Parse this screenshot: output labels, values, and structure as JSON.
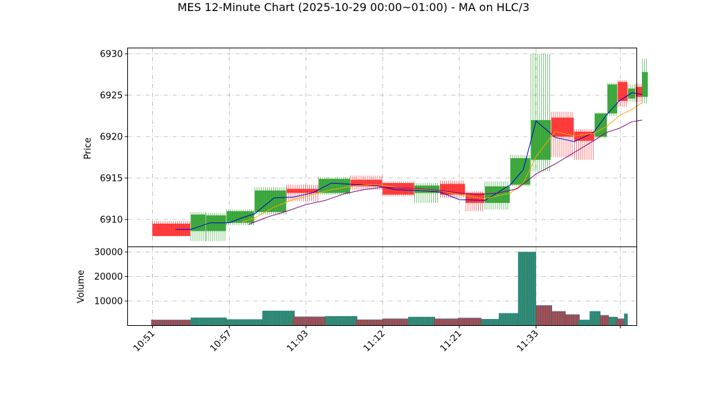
{
  "title": "MES 12-Minute Chart (2025-10-29 00:00~01:00) - MA on HLC/3",
  "colors": {
    "up": "#2ca02c",
    "down": "#ff2a2a",
    "ma_fast": "#0000cc",
    "ma_mid": "#ffa500",
    "ma_slow": "#800080",
    "volume_edge": "#1f77b4"
  },
  "chart_data": [
    {
      "type": "candlestick",
      "ylabel": "Price",
      "xlabel": "",
      "ylim": [
        6906.7,
        6930.7
      ],
      "yticks": [
        6910,
        6915,
        6920,
        6925,
        6930
      ],
      "x_tick_labels": [
        "10:51",
        "10:57",
        "11:03",
        "11:12",
        "11:21",
        "11:33"
      ],
      "x_tick_positions": [
        0,
        6,
        12,
        18,
        24,
        30
      ],
      "grid": true,
      "candles": [
        {
          "x": 0,
          "o": 6909.5,
          "h": 6909.8,
          "l": 6908.0,
          "c": 6908.0,
          "dir": "down"
        },
        {
          "x": 3,
          "o": 6908.6,
          "h": 6910.9,
          "l": 6907.4,
          "c": 6910.6,
          "dir": "up"
        },
        {
          "x": 4.2,
          "o": 6908.6,
          "h": 6910.8,
          "l": 6907.4,
          "c": 6910.5,
          "dir": "up"
        },
        {
          "x": 5.8,
          "o": 6909.6,
          "h": 6911.2,
          "l": 6909.3,
          "c": 6911.0,
          "dir": "up"
        },
        {
          "x": 8,
          "o": 6910.9,
          "h": 6913.9,
          "l": 6910.6,
          "c": 6913.5,
          "dir": "up"
        },
        {
          "x": 10.5,
          "o": 6913.7,
          "h": 6914.2,
          "l": 6912.2,
          "c": 6913.2,
          "dir": "down"
        },
        {
          "x": 13,
          "o": 6913.2,
          "h": 6915.1,
          "l": 6913.0,
          "c": 6914.9,
          "dir": "up"
        },
        {
          "x": 15.5,
          "o": 6914.8,
          "h": 6915.3,
          "l": 6913.6,
          "c": 6914.0,
          "dir": "down"
        },
        {
          "x": 18,
          "o": 6914.4,
          "h": 6914.6,
          "l": 6912.8,
          "c": 6913.0,
          "dir": "down"
        },
        {
          "x": 20.5,
          "o": 6913.2,
          "h": 6914.4,
          "l": 6912.0,
          "c": 6914.1,
          "dir": "up"
        },
        {
          "x": 22.5,
          "o": 6914.3,
          "h": 6914.7,
          "l": 6912.6,
          "c": 6913.0,
          "dir": "down"
        },
        {
          "x": 24.5,
          "o": 6913.2,
          "h": 6913.4,
          "l": 6911.0,
          "c": 6912.0,
          "dir": "down"
        },
        {
          "x": 26,
          "o": 6912.0,
          "h": 6914.6,
          "l": 6911.2,
          "c": 6914.0,
          "dir": "up"
        },
        {
          "x": 28,
          "o": 6914.2,
          "h": 6917.8,
          "l": 6914.0,
          "c": 6917.4,
          "dir": "up"
        },
        {
          "x": 29.6,
          "o": 6917.2,
          "h": 6930.0,
          "l": 6915.8,
          "c": 6922.0,
          "dir": "up"
        },
        {
          "x": 31.2,
          "o": 6922.3,
          "h": 6923.0,
          "l": 6917.5,
          "c": 6920.0,
          "dir": "down"
        },
        {
          "x": 33,
          "o": 6920.6,
          "h": 6920.9,
          "l": 6917.2,
          "c": 6919.5,
          "dir": "down"
        },
        {
          "x": 34.6,
          "o": 6920.0,
          "h": 6922.9,
          "l": 6919.8,
          "c": 6922.8,
          "dir": "up"
        },
        {
          "x": 35.6,
          "o": 6922.8,
          "h": 6926.5,
          "l": 6922.5,
          "c": 6926.3,
          "dir": "up"
        },
        {
          "x": 36.4,
          "o": 6926.6,
          "h": 6926.8,
          "l": 6923.6,
          "c": 6924.3,
          "dir": "down"
        },
        {
          "x": 37.2,
          "o": 6924.6,
          "h": 6926.3,
          "l": 6924.2,
          "c": 6925.8,
          "dir": "up"
        },
        {
          "x": 37.8,
          "o": 6926.0,
          "h": 6926.4,
          "l": 6924.2,
          "c": 6924.8,
          "dir": "down"
        },
        {
          "x": 38.3,
          "o": 6924.8,
          "h": 6929.4,
          "l": 6924.0,
          "c": 6927.8,
          "dir": "up"
        }
      ],
      "series": [
        {
          "key": "ma_fast",
          "x": [
            1.8,
            3,
            4.5,
            6,
            7,
            8,
            9.5,
            11,
            12.5,
            14,
            16,
            17.5,
            19,
            21,
            22.5,
            24,
            26,
            28,
            29,
            30,
            31.5,
            33,
            34.5,
            35.5,
            36.5,
            37.5,
            38.3
          ],
          "y": [
            6908.8,
            6908.8,
            6909.6,
            6909.6,
            6910.2,
            6910.7,
            6912.6,
            6912.7,
            6913.2,
            6914.4,
            6914.2,
            6914.1,
            6913.6,
            6913.5,
            6913.3,
            6912.4,
            6912.3,
            6914.2,
            6916.0,
            6921.9,
            6919.9,
            6919.4,
            6920.5,
            6922.6,
            6924.3,
            6925.3,
            6925.1
          ]
        },
        {
          "key": "ma_mid",
          "x": [
            7,
            8,
            9.5,
            11,
            12.5,
            14,
            16,
            17.5,
            19,
            21,
            22.5,
            24,
            26,
            28,
            29,
            30,
            31.5,
            33,
            34.5,
            35.5,
            36.5,
            37.5,
            38.3
          ],
          "y": [
            6909.7,
            6910.2,
            6911.5,
            6912.4,
            6913.0,
            6913.6,
            6914.1,
            6914.2,
            6913.9,
            6913.6,
            6913.5,
            6913.0,
            6912.5,
            6913.2,
            6914.4,
            6917.6,
            6920.6,
            6920.1,
            6920.4,
            6921.2,
            6922.5,
            6923.3,
            6924.1
          ]
        },
        {
          "key": "ma_slow",
          "x": [
            7.5,
            9,
            10.5,
            12,
            13.5,
            15,
            16.5,
            18,
            19.5,
            21,
            22.5,
            24,
            25.5,
            27,
            28.5,
            30,
            31.5,
            33,
            34.5,
            35.5,
            36.5,
            37.5,
            38.3
          ],
          "y": [
            6909.4,
            6910.3,
            6911.0,
            6911.8,
            6912.3,
            6913.1,
            6913.6,
            6913.9,
            6913.8,
            6913.7,
            6913.5,
            6913.2,
            6913.0,
            6913.2,
            6913.7,
            6915.5,
            6916.7,
            6918.1,
            6919.5,
            6920.5,
            6921.0,
            6921.8,
            6922.0
          ]
        }
      ]
    },
    {
      "type": "bar",
      "ylabel": "Volume",
      "ylim": [
        0,
        30000
      ],
      "yticks": [
        10000,
        20000,
        30000
      ],
      "bars": [
        {
          "x0": -0.1,
          "x1": 3.0,
          "v": 2300,
          "dir": "down"
        },
        {
          "x0": 3.0,
          "x1": 5.8,
          "v": 3200,
          "dir": "up"
        },
        {
          "x0": 5.8,
          "x1": 8.6,
          "v": 2500,
          "dir": "up"
        },
        {
          "x0": 8.6,
          "x1": 11.0,
          "v": 6000,
          "dir": "up"
        },
        {
          "x0": 11.0,
          "x1": 13.5,
          "v": 3600,
          "dir": "down"
        },
        {
          "x0": 13.5,
          "x1": 15.9,
          "v": 3800,
          "dir": "up"
        },
        {
          "x0": 15.9,
          "x1": 18.0,
          "v": 2400,
          "dir": "down"
        },
        {
          "x0": 18.0,
          "x1": 20.0,
          "v": 2800,
          "dir": "down"
        },
        {
          "x0": 20.0,
          "x1": 22.0,
          "v": 3500,
          "dir": "up"
        },
        {
          "x0": 22.0,
          "x1": 23.9,
          "v": 2800,
          "dir": "down"
        },
        {
          "x0": 23.9,
          "x1": 25.7,
          "v": 3100,
          "dir": "down"
        },
        {
          "x0": 25.7,
          "x1": 27.1,
          "v": 2600,
          "dir": "up"
        },
        {
          "x0": 27.1,
          "x1": 28.6,
          "v": 5000,
          "dir": "up"
        },
        {
          "x0": 28.6,
          "x1": 30.0,
          "v": 30000,
          "dir": "up"
        },
        {
          "x0": 30.0,
          "x1": 31.2,
          "v": 8200,
          "dir": "down"
        },
        {
          "x0": 31.2,
          "x1": 32.3,
          "v": 5800,
          "dir": "down"
        },
        {
          "x0": 32.3,
          "x1": 33.3,
          "v": 4500,
          "dir": "down"
        },
        {
          "x0": 33.3,
          "x1": 34.2,
          "v": 2300,
          "dir": "up"
        },
        {
          "x0": 34.2,
          "x1": 35.0,
          "v": 5800,
          "dir": "up"
        },
        {
          "x0": 35.0,
          "x1": 35.7,
          "v": 4200,
          "dir": "down"
        },
        {
          "x0": 35.7,
          "x1": 36.3,
          "v": 3500,
          "dir": "up"
        },
        {
          "x0": 36.3,
          "x1": 36.9,
          "v": 2800,
          "dir": "down"
        },
        {
          "x0": 36.9,
          "x1": 37.1,
          "v": 4800,
          "dir": "up"
        }
      ]
    }
  ]
}
